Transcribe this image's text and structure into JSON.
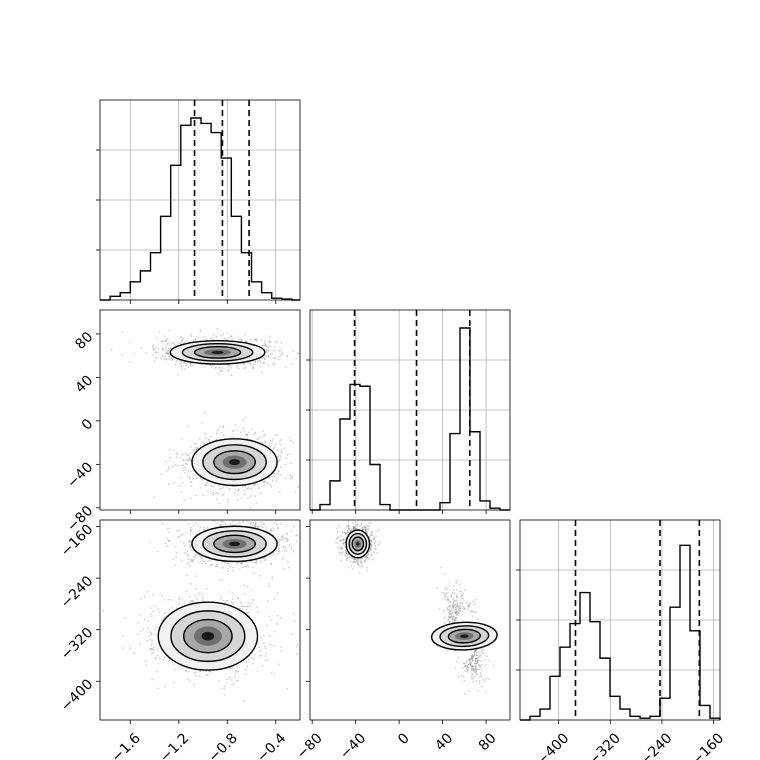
{
  "chart_data": {
    "type": "corner",
    "parameters": 3,
    "grid": true,
    "quantile_lines": "dashed",
    "axes": {
      "p0": {
        "lim": [
          -1.85,
          -0.2
        ],
        "ticks": [
          -1.6,
          -1.2,
          -0.8,
          -0.4
        ],
        "tick_labels": [
          "−1.6",
          "−1.2",
          "−0.8",
          "−0.4"
        ]
      },
      "p1": {
        "lim": [
          -82,
          102
        ],
        "ticks": [
          -80,
          -40,
          0,
          40,
          80
        ],
        "tick_labels": [
          "−80",
          "−40",
          "0",
          "40",
          "80"
        ]
      },
      "p2": {
        "lim": [
          -460,
          -150
        ],
        "ticks": [
          -400,
          -320,
          -240,
          -160
        ],
        "tick_labels": [
          "−400",
          "−320",
          "−240",
          "−160"
        ]
      }
    },
    "diagonal": [
      {
        "param": "p0",
        "bin_edges": [
          -1.85,
          -1.7667,
          -1.6833,
          -1.6,
          -1.5167,
          -1.4333,
          -1.35,
          -1.2667,
          -1.1833,
          -1.1,
          -1.0167,
          -0.9333,
          -0.85,
          -0.7667,
          -0.6833,
          -0.6,
          -0.5167,
          -0.4333,
          -0.35,
          -0.2667,
          -0.2
        ],
        "counts": [
          0.0,
          0.02,
          0.04,
          0.1,
          0.16,
          0.26,
          0.46,
          0.74,
          0.96,
          1.0,
          0.97,
          0.92,
          0.78,
          0.46,
          0.26,
          0.1,
          0.04,
          0.01,
          0.005,
          0.0
        ],
        "quantiles": [
          -1.07,
          -0.84,
          -0.62
        ]
      },
      {
        "param": "p1",
        "bin_edges": [
          -82,
          -72.8,
          -63.6,
          -54.4,
          -45.2,
          -36,
          -26.8,
          -17.6,
          -8.4,
          0.8,
          10,
          19.2,
          28.4,
          37.6,
          46.8,
          56,
          65.2,
          74.4,
          83.6,
          92.8,
          102
        ],
        "counts": [
          0.0,
          0.03,
          0.16,
          0.5,
          0.69,
          0.68,
          0.25,
          0.03,
          0.0,
          0.0,
          0.0,
          0.0,
          0.0,
          0.04,
          0.42,
          1.0,
          0.43,
          0.05,
          0.01,
          0.0
        ],
        "quantiles": [
          -41,
          16,
          65
        ]
      },
      {
        "param": "p2",
        "bin_edges": [
          -460,
          -444.5,
          -429,
          -413.5,
          -398,
          -382.5,
          -367,
          -351.5,
          -336,
          -320.5,
          -305,
          -289.5,
          -274,
          -258.5,
          -243,
          -227.5,
          -212,
          -196.5,
          -181,
          -165.5,
          -150
        ],
        "counts": [
          0.0,
          0.02,
          0.06,
          0.24,
          0.4,
          0.53,
          0.7,
          0.54,
          0.34,
          0.13,
          0.06,
          0.02,
          0.01,
          0.02,
          0.12,
          0.62,
          0.96,
          0.49,
          0.08,
          0.01
        ],
        "quantiles": [
          -374,
          -243,
          -182
        ]
      }
    ],
    "pairs": [
      {
        "x": "p0",
        "y": "p1",
        "modes": [
          {
            "center": [
              -0.88,
              63
            ],
            "sd": [
              0.2,
              5.5
            ]
          },
          {
            "center": [
              -0.74,
              -38
            ],
            "sd": [
              0.18,
              11
            ]
          }
        ]
      },
      {
        "x": "p0",
        "y": "p2",
        "modes": [
          {
            "center": [
              -0.74,
              -187
            ],
            "sd": [
              0.18,
              14
            ]
          },
          {
            "center": [
              -0.96,
              -330
            ],
            "sd": [
              0.21,
              27
            ]
          }
        ]
      },
      {
        "x": "p1",
        "y": "p2",
        "modes": [
          {
            "center": [
              -38,
              -187
            ],
            "sd": [
              5.5,
              11
            ]
          },
          {
            "center": [
              60,
              -330
            ],
            "sd": [
              6.5,
              26
            ],
            "corr": -0.6
          }
        ]
      }
    ]
  }
}
